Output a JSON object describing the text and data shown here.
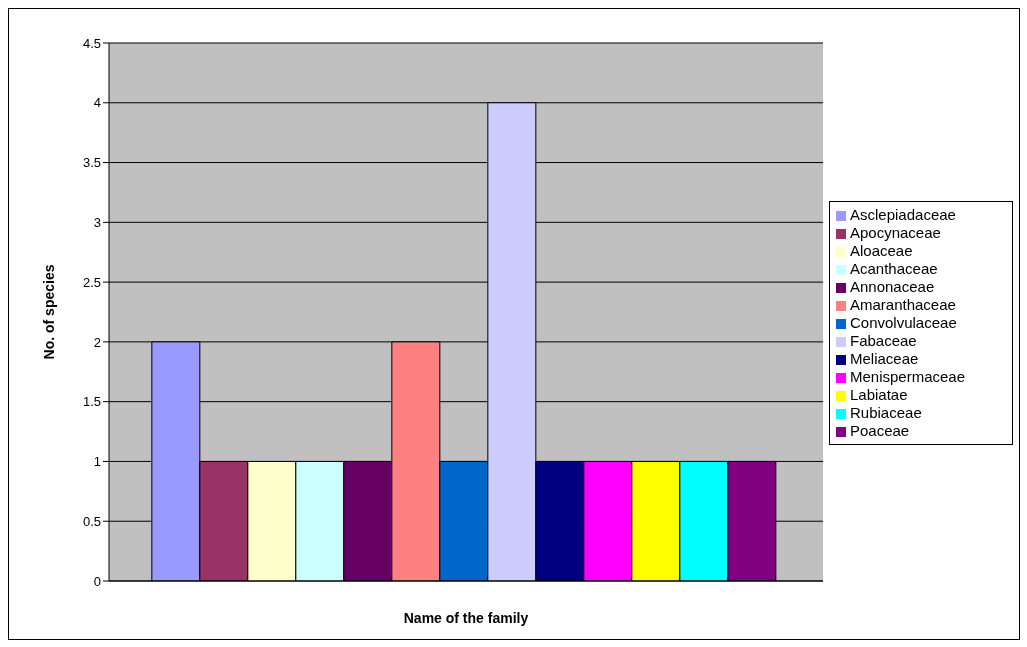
{
  "chart_data": {
    "type": "bar",
    "xlabel": "Name of the family",
    "ylabel": "No. of species",
    "categories": [
      null
    ],
    "series": [
      {
        "name": "Asclepiadaceae",
        "color": "#9999ff",
        "values": [
          2
        ]
      },
      {
        "name": "Apocynaceae",
        "color": "#993366",
        "values": [
          1
        ]
      },
      {
        "name": "Aloaceae",
        "color": "#ffffcc",
        "values": [
          1
        ]
      },
      {
        "name": "Acanthaceae",
        "color": "#ccffff",
        "values": [
          1
        ]
      },
      {
        "name": "Annonaceae",
        "color": "#660066",
        "values": [
          1
        ]
      },
      {
        "name": "Amaranthaceae",
        "color": "#ff8080",
        "values": [
          2
        ]
      },
      {
        "name": "Convolvulaceae",
        "color": "#0066cc",
        "values": [
          1
        ]
      },
      {
        "name": "Fabaceae",
        "color": "#ccccff",
        "values": [
          4
        ]
      },
      {
        "name": "Meliaceae",
        "color": "#000080",
        "values": [
          1
        ]
      },
      {
        "name": "Menispermaceae",
        "color": "#ff00ff",
        "values": [
          1
        ]
      },
      {
        "name": "Labiatae",
        "color": "#ffff00",
        "values": [
          1
        ]
      },
      {
        "name": "Rubiaceae",
        "color": "#00ffff",
        "values": [
          1
        ]
      },
      {
        "name": "Poaceae",
        "color": "#800080",
        "values": [
          1
        ]
      }
    ],
    "ylim": [
      0,
      4.5
    ],
    "yticks": [
      0,
      0.5,
      1,
      1.5,
      2,
      2.5,
      3,
      3.5,
      4,
      4.5
    ],
    "grid": "y",
    "legend": "right"
  }
}
